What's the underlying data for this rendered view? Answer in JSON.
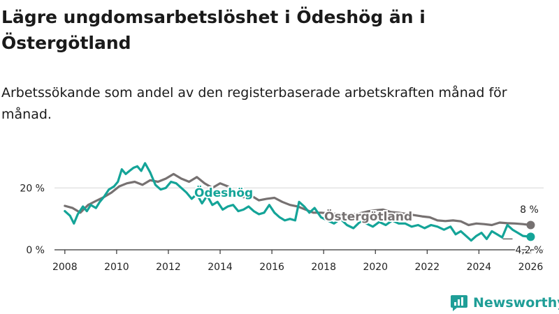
{
  "title": "Lägre ungdomsarbetslöshet i Ödeshög än i Östergötland",
  "subtitle": "Arbetssökande som andel av den registerbaserade arbetskraften månad för månad.",
  "brand": {
    "name": "Newsworthy",
    "icon": "newsworthy-logo-icon"
  },
  "colors": {
    "odeshog": "#14a498",
    "ostergotland": "#767171",
    "grid": "#d9d9d9",
    "axis": "#333333"
  },
  "chart_data": {
    "type": "line",
    "title": "Lägre ungdomsarbetslöshet i Ödeshög än i Östergötland",
    "xlabel": "",
    "ylabel": "",
    "xlim": [
      2007.6,
      2026.5
    ],
    "ylim": [
      0,
      30
    ],
    "y_ticks": [
      0,
      20
    ],
    "y_tick_labels": [
      "0 %",
      "20 %"
    ],
    "x_ticks": [
      2008,
      2010,
      2012,
      2014,
      2016,
      2018,
      2020,
      2022,
      2024,
      2026
    ],
    "x_tick_labels": [
      "2008",
      "2010",
      "2012",
      "2014",
      "2016",
      "2018",
      "2020",
      "2022",
      "2024",
      "2026"
    ],
    "grid": "horizontal",
    "series": [
      {
        "name": "Östergötland",
        "label": "Östergötland",
        "color": "#767171",
        "end_label": "8 %",
        "x": [
          2008.0,
          2008.3,
          2008.6,
          2008.9,
          2009.2,
          2009.5,
          2009.8,
          2010.1,
          2010.4,
          2010.7,
          2011.0,
          2011.3,
          2011.6,
          2011.9,
          2012.2,
          2012.5,
          2012.8,
          2013.1,
          2013.4,
          2013.7,
          2014.0,
          2014.3,
          2014.6,
          2014.9,
          2015.2,
          2015.5,
          2015.8,
          2016.1,
          2016.4,
          2016.7,
          2017.0,
          2017.3,
          2017.6,
          2017.9,
          2018.2,
          2018.5,
          2018.8,
          2019.1,
          2019.4,
          2019.7,
          2020.0,
          2020.3,
          2020.6,
          2020.9,
          2021.2,
          2021.5,
          2021.8,
          2022.1,
          2022.4,
          2022.7,
          2023.0,
          2023.3,
          2023.6,
          2023.9,
          2024.2,
          2024.5,
          2024.8,
          2025.1,
          2025.4,
          2025.7,
          2026.0
        ],
        "values": [
          14.2,
          13.5,
          12.0,
          14.5,
          15.8,
          17.0,
          18.5,
          20.5,
          21.5,
          22.0,
          21.0,
          22.5,
          22.0,
          23.0,
          24.5,
          23.0,
          22.0,
          23.5,
          21.5,
          20.0,
          21.5,
          20.5,
          18.5,
          17.0,
          17.5,
          16.0,
          16.5,
          16.8,
          15.5,
          14.5,
          14.0,
          13.0,
          12.0,
          12.0,
          11.8,
          11.6,
          11.5,
          11.4,
          11.8,
          12.4,
          12.8,
          13.0,
          12.2,
          12.0,
          11.6,
          11.2,
          10.8,
          10.5,
          9.5,
          9.3,
          9.5,
          9.2,
          8.0,
          8.5,
          8.3,
          8.0,
          8.8,
          8.6,
          8.5,
          8.3,
          8.0
        ]
      },
      {
        "name": "Ödeshög",
        "label": "Ödeshög",
        "color": "#14a498",
        "end_label": "4,2 %",
        "x": [
          2008.0,
          2008.2,
          2008.35,
          2008.5,
          2008.7,
          2008.85,
          2009.0,
          2009.2,
          2009.35,
          2009.5,
          2009.7,
          2009.9,
          2010.05,
          2010.2,
          2010.35,
          2010.5,
          2010.65,
          2010.8,
          2010.95,
          2011.1,
          2011.3,
          2011.5,
          2011.7,
          2011.9,
          2012.1,
          2012.3,
          2012.5,
          2012.7,
          2012.9,
          2013.1,
          2013.3,
          2013.5,
          2013.7,
          2013.9,
          2014.1,
          2014.3,
          2014.5,
          2014.7,
          2014.9,
          2015.1,
          2015.3,
          2015.5,
          2015.7,
          2015.9,
          2016.1,
          2016.3,
          2016.5,
          2016.7,
          2016.9,
          2017.05,
          2017.25,
          2017.45,
          2017.65,
          2017.9,
          2018.15,
          2018.4,
          2018.65,
          2018.9,
          2019.15,
          2019.4,
          2019.65,
          2019.9,
          2020.15,
          2020.4,
          2020.65,
          2020.9,
          2021.15,
          2021.4,
          2021.65,
          2021.9,
          2022.15,
          2022.4,
          2022.65,
          2022.9,
          2023.1,
          2023.3,
          2023.5,
          2023.7,
          2023.9,
          2024.1,
          2024.3,
          2024.5,
          2024.7,
          2024.9,
          2025.1,
          2025.3,
          2025.5,
          2025.7,
          2026.0
        ],
        "values": [
          12.5,
          11.0,
          8.5,
          11.5,
          14.0,
          12.5,
          14.5,
          13.5,
          15.5,
          17.0,
          19.5,
          20.5,
          22.0,
          26.0,
          24.5,
          25.5,
          26.5,
          27.0,
          25.5,
          28.0,
          25.0,
          21.0,
          19.5,
          20.0,
          22.0,
          21.5,
          20.0,
          18.5,
          16.5,
          18.0,
          15.0,
          17.5,
          14.5,
          15.5,
          13.0,
          14.0,
          14.5,
          12.5,
          13.0,
          14.0,
          12.5,
          11.5,
          12.0,
          14.5,
          12.0,
          10.5,
          9.5,
          10.0,
          9.5,
          15.5,
          14.0,
          12.0,
          13.5,
          10.5,
          9.5,
          8.5,
          10.0,
          8.0,
          7.0,
          9.0,
          8.5,
          7.5,
          9.0,
          8.0,
          9.5,
          8.5,
          8.5,
          7.5,
          8.0,
          7.0,
          8.0,
          7.5,
          6.5,
          7.5,
          5.0,
          6.0,
          4.5,
          3.0,
          4.5,
          5.5,
          3.5,
          6.0,
          5.0,
          4.0,
          8.0,
          6.5,
          5.5,
          4.5,
          4.2
        ]
      }
    ]
  }
}
